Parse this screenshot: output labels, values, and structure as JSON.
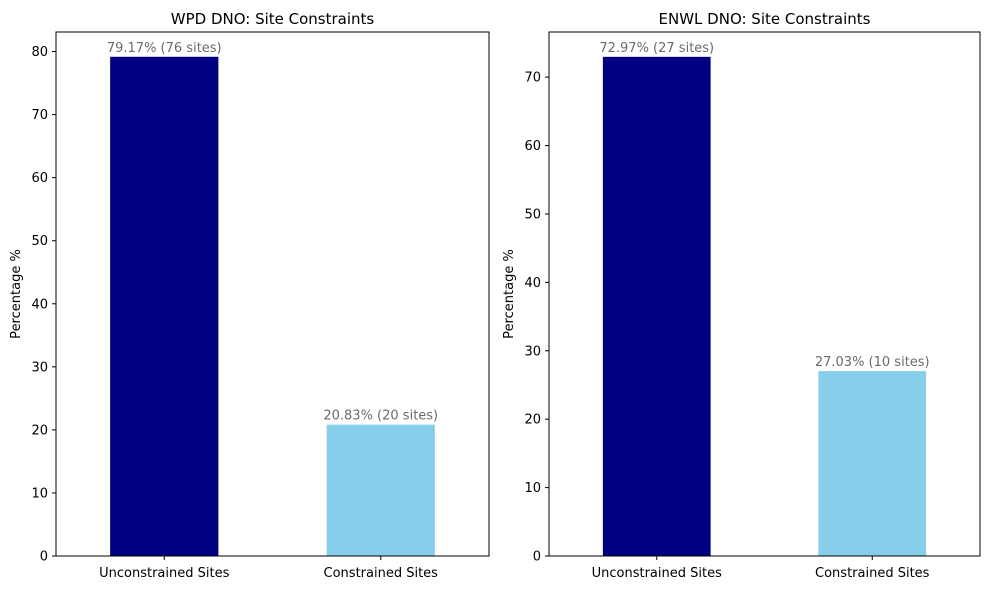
{
  "chart_data": [
    {
      "type": "bar",
      "title": "WPD DNO: Site Constraints",
      "ylabel": "Percentage %",
      "xlabel": "",
      "categories": [
        "Unconstrained Sites",
        "Constrained Sites"
      ],
      "values": [
        79.17,
        20.83
      ],
      "data_labels": [
        "79.17% (76 sites)",
        "20.83% (20 sites)"
      ],
      "colors": [
        "#000080",
        "#87CEEB"
      ],
      "ylim": [
        0,
        83.1
      ],
      "yticks": [
        0,
        10,
        20,
        30,
        40,
        50,
        60,
        70,
        80
      ],
      "grid": false
    },
    {
      "type": "bar",
      "title": "ENWL DNO: Site Constraints",
      "ylabel": "Percentage %",
      "xlabel": "",
      "categories": [
        "Unconstrained Sites",
        "Constrained Sites"
      ],
      "values": [
        72.97,
        27.03
      ],
      "data_labels": [
        "72.97% (27 sites)",
        "27.03% (10 sites)"
      ],
      "colors": [
        "#000080",
        "#87CEEB"
      ],
      "ylim": [
        0,
        76.6
      ],
      "yticks": [
        0,
        10,
        20,
        30,
        40,
        50,
        60,
        70
      ],
      "grid": false
    }
  ]
}
